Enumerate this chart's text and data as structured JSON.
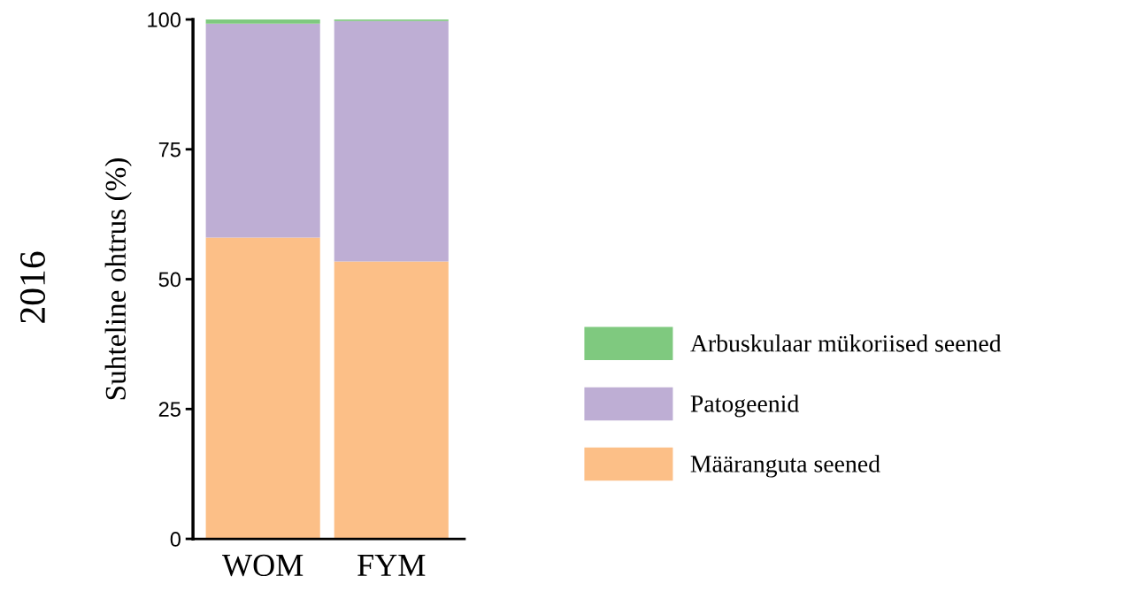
{
  "chart_data": {
    "type": "bar",
    "stacked": true,
    "title": "2016",
    "ylabel": "Suhteline ohtrus (%)",
    "categories": [
      "WOM",
      "FYM"
    ],
    "series": [
      {
        "name": "Määranguta seened",
        "color": "#fcbf87",
        "values": [
          58,
          53.4
        ]
      },
      {
        "name": "Patogeenid",
        "color": "#beaed4",
        "values": [
          41.2,
          46.3
        ]
      },
      {
        "name": "Arbuskulaar mükoriised seened",
        "color": "#7fc97f",
        "values": [
          0.8,
          0.3
        ]
      }
    ],
    "ylim": [
      0,
      100
    ],
    "yticks": [
      0,
      25,
      50,
      75,
      100
    ],
    "grid": false,
    "legend": "right"
  }
}
